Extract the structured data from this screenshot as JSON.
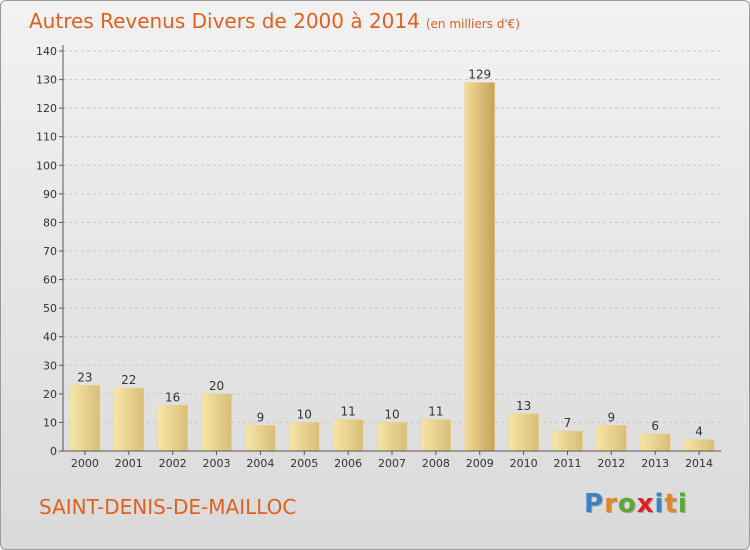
{
  "header": {
    "title": "Autres Revenus Divers de 2000 à 2014",
    "subtitle": "(en milliers d'€)"
  },
  "footer": {
    "town": "SAINT-DENIS-DE-MAILLOC",
    "brand_letters": [
      "P",
      "r",
      "o",
      "x",
      "i",
      "t",
      "i"
    ],
    "brand_colors": [
      "#3b82c4",
      "#e2862a",
      "#5aa832",
      "#e02020",
      "#3b82c4",
      "#e2862a",
      "#5aa832"
    ]
  },
  "colors": {
    "title": "#e06020",
    "bar_light": "#f7e2a0",
    "bar_dark": "#c9aa62",
    "axis": "#555555",
    "grid": "#c8c8c8"
  },
  "chart_data": {
    "type": "bar",
    "categories": [
      "2000",
      "2001",
      "2002",
      "2003",
      "2004",
      "2005",
      "2006",
      "2007",
      "2008",
      "2009",
      "2010",
      "2011",
      "2012",
      "2013",
      "2014"
    ],
    "values": [
      23,
      22,
      16,
      20,
      9,
      10,
      11,
      10,
      11,
      129,
      13,
      7,
      9,
      6,
      4
    ],
    "ylim": [
      0,
      140
    ],
    "yticks": [
      0,
      10,
      20,
      30,
      40,
      50,
      60,
      70,
      80,
      90,
      100,
      110,
      120,
      130,
      140
    ],
    "grid": true,
    "data_labels": true
  }
}
